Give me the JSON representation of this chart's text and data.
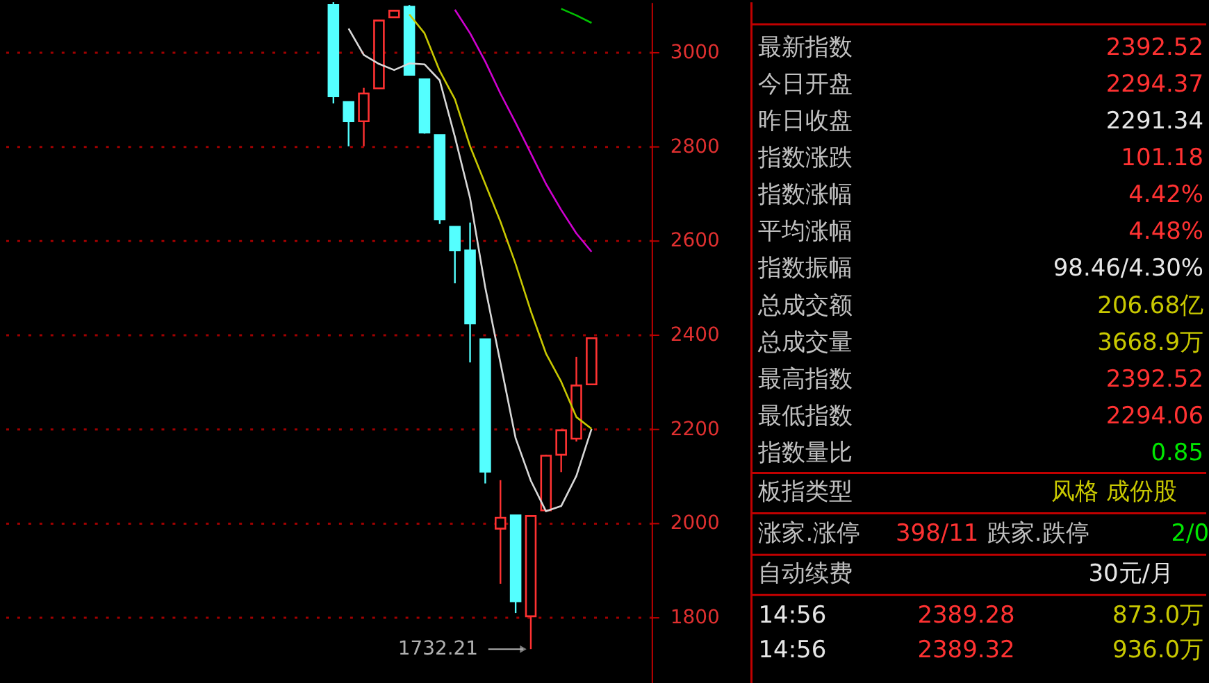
{
  "chart_data": [
    {
      "type": "candlestick",
      "categories": [
        null,
        null,
        null,
        null,
        null,
        null,
        null,
        null,
        null,
        null,
        null,
        null,
        null,
        null,
        null,
        null,
        null,
        null,
        null,
        null,
        null,
        null,
        null,
        null,
        null,
        null,
        null,
        null,
        null,
        null,
        null,
        null,
        null,
        null,
        null,
        null,
        null,
        null,
        null,
        null,
        null,
        null
      ],
      "ohlc": [
        null,
        null,
        null,
        null,
        null,
        null,
        null,
        null,
        null,
        null,
        null,
        null,
        null,
        null,
        null,
        null,
        null,
        null,
        null,
        null,
        null,
        [
          3100,
          3106,
          2891,
          2906
        ],
        [
          2894,
          2894,
          2800,
          2853
        ],
        [
          2853,
          2924,
          2800,
          2912
        ],
        [
          2923,
          3067,
          2923,
          3067
        ],
        [
          3074,
          3088,
          3074,
          3088
        ],
        [
          3096,
          3100,
          2952,
          2952
        ],
        [
          2942,
          2942,
          2827,
          2829
        ],
        [
          2824,
          2824,
          2635,
          2645
        ],
        [
          2629,
          2629,
          2509,
          2579
        ],
        [
          2579,
          2638,
          2341,
          2424
        ],
        [
          2390,
          2390,
          2084,
          2109
        ],
        [
          1988,
          2091,
          1871,
          2011
        ],
        [
          2016,
          2016,
          1809,
          1834
        ],
        [
          1802,
          2015,
          1732.21,
          2015
        ],
        [
          2027,
          2145,
          2027,
          2143
        ],
        [
          2145,
          2197,
          2108,
          2197
        ],
        [
          2179,
          2353,
          2173,
          2292
        ],
        [
          2294.37,
          2392.52,
          2294.06,
          2392.52
        ],
        null,
        null,
        null
      ],
      "colors": [
        null,
        null,
        null,
        null,
        null,
        null,
        null,
        null,
        null,
        null,
        null,
        null,
        null,
        null,
        null,
        null,
        null,
        null,
        null,
        null,
        null,
        "#54ffff",
        "#54ffff",
        "#ff3232",
        "#ff3232",
        "#ff3232",
        "#54ffff",
        "#54ffff",
        "#54ffff",
        "#54ffff",
        "#54ffff",
        "#54ffff",
        "#ff3232",
        "#54ffff",
        "#ff3232",
        "#ff3232",
        "#ff3232",
        "#ff3232",
        "#ff3232",
        null,
        null,
        null
      ],
      "series": [
        {
          "type": "line",
          "color": "#d8d8d8",
          "values": [
            null,
            null,
            null,
            null,
            null,
            null,
            null,
            null,
            null,
            null,
            null,
            null,
            null,
            null,
            null,
            null,
            null,
            null,
            null,
            null,
            null,
            null,
            3050,
            2994,
            2975,
            2962,
            2976,
            2974,
            2940,
            2820,
            2690,
            2500,
            2340,
            2180,
            2090,
            2025,
            2036,
            2100,
            2200,
            null,
            null,
            null
          ]
        },
        {
          "type": "line",
          "color": "#c8c800",
          "values": [
            null,
            null,
            null,
            null,
            null,
            null,
            null,
            null,
            null,
            null,
            null,
            null,
            null,
            null,
            null,
            null,
            null,
            null,
            null,
            null,
            null,
            null,
            null,
            null,
            null,
            null,
            3080,
            3040,
            2960,
            2900,
            2800,
            2720,
            2640,
            2550,
            2450,
            2360,
            2300,
            2225,
            2200,
            null,
            null,
            null
          ]
        },
        {
          "type": "line",
          "color": "#d000d0",
          "values": [
            null,
            null,
            null,
            null,
            null,
            null,
            null,
            null,
            null,
            null,
            null,
            null,
            null,
            null,
            null,
            null,
            null,
            null,
            null,
            null,
            null,
            null,
            null,
            null,
            null,
            null,
            null,
            null,
            null,
            3090,
            3040,
            2980,
            2912,
            2850,
            2785,
            2720,
            2665,
            2615,
            2576,
            null,
            null,
            null
          ]
        },
        {
          "type": "line",
          "color": "#00c000",
          "values": [
            null,
            null,
            null,
            null,
            null,
            null,
            null,
            null,
            null,
            null,
            null,
            null,
            null,
            null,
            null,
            null,
            null,
            null,
            null,
            null,
            null,
            null,
            null,
            null,
            null,
            null,
            null,
            null,
            null,
            null,
            null,
            null,
            null,
            null,
            null,
            null,
            3092,
            3078,
            3062,
            null,
            null,
            null
          ]
        }
      ],
      "ylim": [
        1659,
        3106
      ],
      "yticks": [
        1800,
        2000,
        2200,
        2400,
        2600,
        2800,
        3000
      ],
      "grid": "y",
      "tick_labels": "y",
      "annotations": [
        "1732.21"
      ]
    },
    {
      "type": "other",
      "annotations": [
        "最新指数",
        "2392.52",
        "今日开盘",
        "2294.37",
        "昨日收盘",
        "2291.34",
        "指数涨跌",
        "101.18",
        "指数涨幅",
        "4.42%",
        "平均涨幅",
        "4.48%",
        "指数振幅",
        "98.46/4.30%",
        "总成交额",
        "206.68亿",
        "总成交量",
        "3668.9万",
        "最高指数",
        "2392.52",
        "最低指数",
        "2294.06",
        "指数量比",
        "0.85",
        "板指类型",
        "风格 成份股",
        "涨家.涨停",
        "398/11",
        "跌家.跌停",
        "2/0",
        "自动续费",
        "30元/月",
        "14:56",
        "2389.28",
        "873.0万",
        "14:56",
        "2389.32",
        "936.0万"
      ],
      "colors": [
        "#c0c0c0",
        "#ff3232",
        "#c0c0c0",
        "#ff3232",
        "#c0c0c0",
        "#e6e6e6",
        "#c0c0c0",
        "#ff3232",
        "#c0c0c0",
        "#ff3232",
        "#c0c0c0",
        "#ff3232",
        "#c0c0c0",
        "#e6e6e6",
        "#c0c0c0",
        "#c8c800",
        "#c0c0c0",
        "#c8c800",
        "#c0c0c0",
        "#ff3232",
        "#c0c0c0",
        "#ff3232",
        "#c0c0c0",
        "#00e600",
        "#c0c0c0",
        "#c8c800",
        "#c0c0c0",
        "#ff3232",
        "#c0c0c0",
        "#00e600",
        "#c0c0c0",
        "#e6e6e6",
        "#e6e6e6",
        "#ff3232",
        "#c8c800",
        "#e6e6e6",
        "#ff3232",
        "#c8c800"
      ]
    }
  ]
}
